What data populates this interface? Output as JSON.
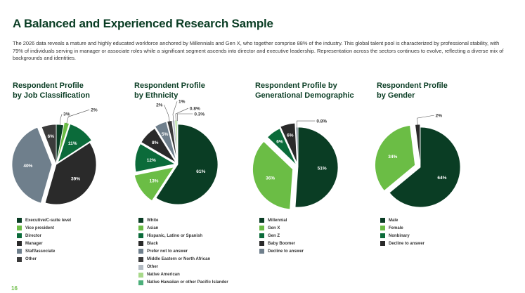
{
  "page": {
    "title": "A Balanced and Experienced Research Sample",
    "intro": "The 2026 data reveals a mature and highly educated workforce anchored by Millennials and Gen X, who together comprise 88% of the industry. This global talent pool is characterized by professional stability, with 79% of individuals serving in manager or associate roles while a significant segment ascends into director and executive leadership. Representation across the sectors continues to evolve, reflecting a diverse mix of backgrounds and identities.",
    "page_number": "16"
  },
  "chart_data": [
    {
      "type": "pie",
      "title_lines": [
        "Respondent Profile",
        "by Job Classification"
      ],
      "series": [
        {
          "name": "Executive/C-suite level",
          "value": 3,
          "label": "3%",
          "color": "#0a3d24"
        },
        {
          "name": "Vice president",
          "value": 2,
          "label": "2%",
          "color": "#6bbd45"
        },
        {
          "name": "Director",
          "value": 11,
          "label": "11%",
          "color": "#0b6b3a"
        },
        {
          "name": "Manager",
          "value": 39,
          "label": "39%",
          "color": "#2a2a2a"
        },
        {
          "name": "Staff/associate",
          "value": 40,
          "label": "40%",
          "color": "#6f7f8c"
        },
        {
          "name": "Other",
          "value": 6,
          "label": "6%",
          "color": "#3b3b3b"
        }
      ]
    },
    {
      "type": "pie",
      "title_lines": [
        "Respondent Profile",
        "by Ethnicity"
      ],
      "series": [
        {
          "name": "White",
          "value": 61,
          "label": "61%",
          "color": "#0a3d24"
        },
        {
          "name": "Asian",
          "value": 13,
          "label": "13%",
          "color": "#6bbd45"
        },
        {
          "name": "Hispanic, Latino or Spanish",
          "value": 12,
          "label": "12%",
          "color": "#0b6b3a"
        },
        {
          "name": "Black",
          "value": 8,
          "label": "8%",
          "color": "#2a2a2a"
        },
        {
          "name": "Prefer not to answer",
          "value": 5,
          "label": "5%",
          "color": "#6f7f8c"
        },
        {
          "name": "Middle Eastern or North African",
          "value": 2,
          "label": "2%",
          "color": "#3b3b3b"
        },
        {
          "name": "Other",
          "value": 1,
          "label": "1%",
          "color": "#b4bcc4"
        },
        {
          "name": "Native American",
          "value": 0.8,
          "label": "0.8%",
          "color": "#a8d98a"
        },
        {
          "name": "Native Hawaiian or other Pacific Islander",
          "value": 0.3,
          "label": "0.3%",
          "color": "#4caf7a"
        }
      ]
    },
    {
      "type": "pie",
      "title_lines": [
        "Respondent Profile by",
        "Generational Demographic"
      ],
      "series": [
        {
          "name": "Millennial",
          "value": 51,
          "label": "51%",
          "color": "#0a3d24"
        },
        {
          "name": "Gen X",
          "value": 36,
          "label": "36%",
          "color": "#6bbd45"
        },
        {
          "name": "Gen Z",
          "value": 6,
          "label": "6%",
          "color": "#0b6b3a"
        },
        {
          "name": "Baby Boomer",
          "value": 6,
          "label": "6%",
          "color": "#2a2a2a"
        },
        {
          "name": "Decline to answer",
          "value": 0.8,
          "label": "0.8%",
          "color": "#6f7f8c"
        }
      ]
    },
    {
      "type": "pie",
      "title_lines": [
        "Respondent Profile",
        "by Gender"
      ],
      "series": [
        {
          "name": "Male",
          "value": 64,
          "label": "64%",
          "color": "#0a3d24"
        },
        {
          "name": "Female",
          "value": 34,
          "label": "34%",
          "color": "#6bbd45"
        },
        {
          "name": "Nonbinary",
          "value": 0,
          "label": "",
          "color": "#0b6b3a"
        },
        {
          "name": "Decline to answer",
          "value": 2,
          "label": "2%",
          "color": "#2a2a2a"
        }
      ]
    }
  ]
}
